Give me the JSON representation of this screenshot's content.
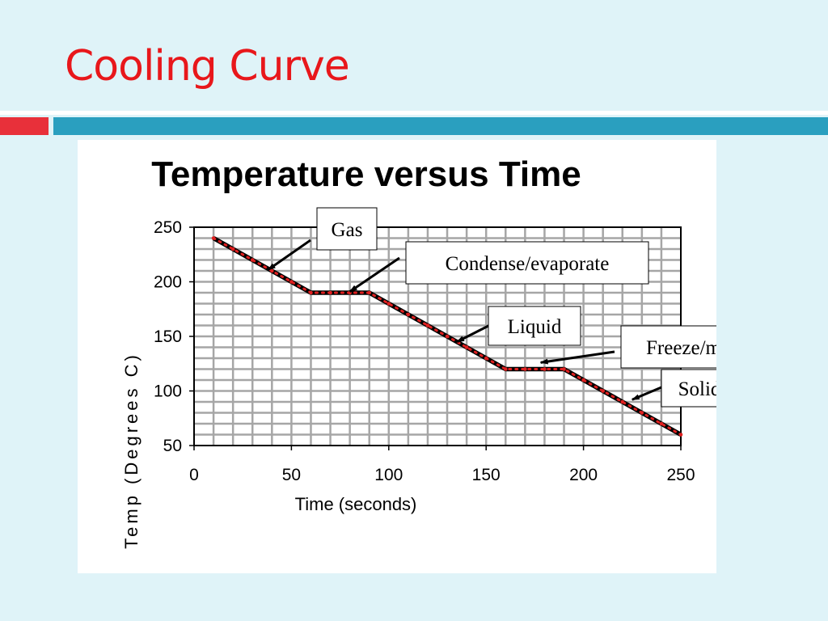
{
  "slide": {
    "title": "Cooling Curve",
    "colors": {
      "background": "#dff3f8",
      "title": "#e8171b",
      "accent_red": "#e8303a",
      "accent_teal": "#2a9fbf"
    }
  },
  "chart_data": {
    "type": "line",
    "title": "Temperature versus Time",
    "xlabel": "Time (seconds)",
    "ylabel": "Temp (Degrees C)",
    "xlim": [
      0,
      250
    ],
    "ylim": [
      50,
      250
    ],
    "x_ticks": [
      0,
      50,
      100,
      150,
      200,
      250
    ],
    "y_ticks": [
      50,
      100,
      150,
      200,
      250
    ],
    "grid": true,
    "series": [
      {
        "x": [
          10,
          20,
          30,
          40,
          50,
          60,
          70,
          80,
          90,
          100,
          110,
          120,
          130,
          140,
          150,
          160,
          170,
          180,
          190,
          200,
          210,
          220,
          230,
          240,
          250
        ],
        "y": [
          240,
          230,
          220,
          210,
          200,
          190,
          190,
          190,
          190,
          180,
          170,
          160,
          150,
          140,
          130,
          120,
          120,
          120,
          120,
          110,
          100,
          90,
          80,
          70,
          60
        ],
        "line_color": "#000000",
        "marker_color": "#e02020"
      }
    ],
    "annotations": [
      {
        "text": "Gas",
        "points_to": [
          38,
          211
        ]
      },
      {
        "text": "Condense/evaporate",
        "points_to": [
          80,
          191
        ]
      },
      {
        "text": "Liquid",
        "points_to": [
          135,
          145
        ]
      },
      {
        "text": "Freeze/melt",
        "points_to": [
          178,
          126
        ]
      },
      {
        "text": "Solid",
        "points_to": [
          225,
          92
        ]
      }
    ]
  }
}
